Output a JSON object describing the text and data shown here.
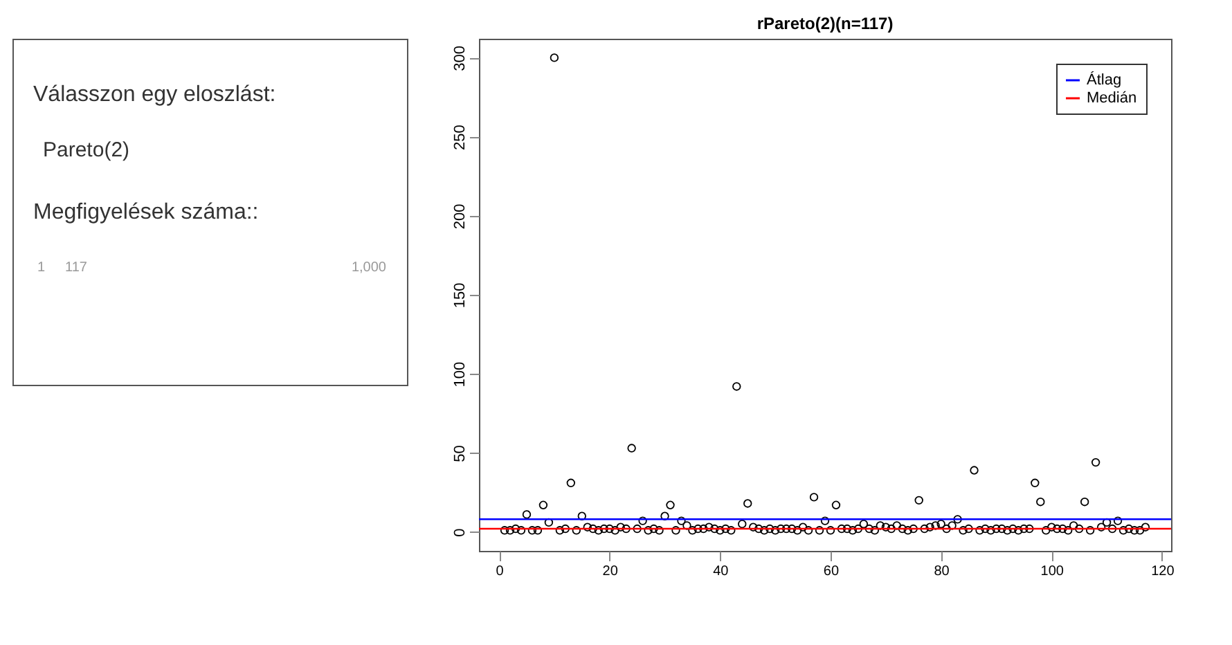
{
  "chart_data": {
    "type": "scatter",
    "title": "rPareto(2)(n=117)",
    "annotations": [
      "Válasszon egy eloszlást:",
      "Pareto(2)",
      "Megfigyelések száma::",
      "1",
      "117",
      "1,000"
    ],
    "x": [
      1,
      2,
      3,
      4,
      5,
      6,
      7,
      8,
      9,
      10,
      11,
      12,
      13,
      14,
      15,
      16,
      17,
      18,
      19,
      20,
      21,
      22,
      23,
      24,
      25,
      26,
      27,
      28,
      29,
      30,
      31,
      32,
      33,
      34,
      35,
      36,
      37,
      38,
      39,
      40,
      41,
      42,
      43,
      44,
      45,
      46,
      47,
      48,
      49,
      50,
      51,
      52,
      53,
      54,
      55,
      56,
      57,
      58,
      59,
      60,
      61,
      62,
      63,
      64,
      65,
      66,
      67,
      68,
      69,
      70,
      71,
      72,
      73,
      74,
      75,
      76,
      77,
      78,
      79,
      80,
      81,
      82,
      83,
      84,
      85,
      86,
      87,
      88,
      89,
      90,
      91,
      92,
      93,
      94,
      95,
      96,
      97,
      98,
      99,
      100,
      101,
      102,
      103,
      104,
      105,
      106,
      107,
      108,
      109,
      110,
      111,
      112,
      113,
      114,
      115,
      116,
      117
    ],
    "series": [
      {
        "color": "#000000",
        "values": [
          1,
          1,
          2,
          1,
          11,
          1,
          1,
          17,
          6,
          300,
          1,
          2,
          31,
          1,
          10,
          3,
          2,
          1,
          2,
          2,
          1,
          3,
          2,
          53,
          2,
          7,
          1,
          2,
          1,
          10,
          17,
          1,
          7,
          4,
          1,
          2,
          2,
          3,
          2,
          1,
          2,
          1,
          92,
          5,
          18,
          3,
          2,
          1,
          2,
          1,
          2,
          2,
          2,
          1,
          3,
          1,
          22,
          1,
          7,
          1,
          17,
          2,
          2,
          1,
          2,
          5,
          2,
          1,
          4,
          3,
          2,
          4,
          2,
          1,
          2,
          20,
          2,
          3,
          4,
          5,
          2,
          4,
          8,
          1,
          2,
          39,
          1,
          2,
          1,
          2,
          2,
          1,
          2,
          1,
          2,
          2,
          31,
          19,
          1,
          3,
          2,
          2,
          1,
          4,
          2,
          19,
          1,
          44,
          3,
          6,
          2,
          7,
          1,
          2,
          1,
          1,
          3
        ]
      }
    ],
    "xlim": [
      -3.64,
      121.64
    ],
    "ylim": [
      -12,
      312
    ],
    "xticks": [
      0,
      20,
      40,
      60,
      80,
      100,
      120
    ],
    "yticks": [
      0,
      50,
      100,
      150,
      200,
      250,
      300
    ],
    "ref_lines": [
      {
        "axis": "y",
        "value": 8,
        "label": "Átlag",
        "color": "#0000ff"
      },
      {
        "axis": "y",
        "value": 2,
        "label": "Medián",
        "color": "#ff0000"
      }
    ],
    "marker": "circle",
    "grid": false,
    "legend": "top right"
  }
}
